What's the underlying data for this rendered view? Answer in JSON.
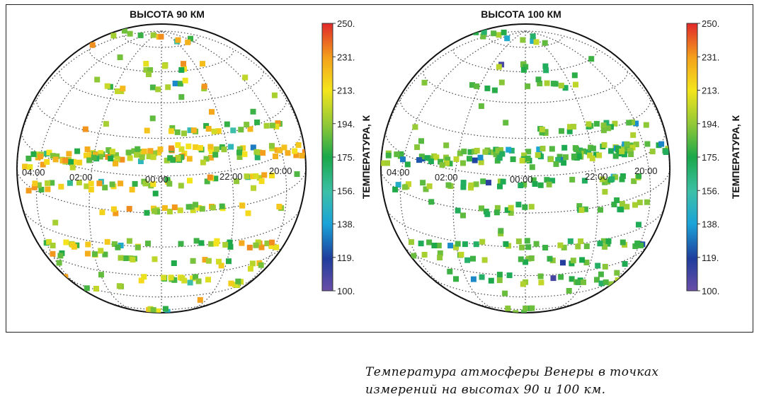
{
  "chart_data": [
    {
      "type": "scatter",
      "projection": "orthographic-globe",
      "title": "ВЫСОТА 90 КМ",
      "color_scale": {
        "label": "ТЕМПЕРАТУРА, К",
        "ticks": [
          "250.",
          "231.",
          "213.",
          "194.",
          "175.",
          "156.",
          "138.",
          "119.",
          "100."
        ],
        "range": [
          100,
          250
        ]
      },
      "longitude_labels": [
        "04:00",
        "02:00",
        "00:00",
        "22:00",
        "20:00"
      ],
      "grid": true
    },
    {
      "type": "scatter",
      "projection": "orthographic-globe",
      "title": "ВЫСОТА 100 КМ",
      "color_scale": {
        "label": "ТЕМПЕРАТУРА, К",
        "ticks": [
          "250.",
          "231.",
          "213.",
          "194.",
          "175.",
          "156.",
          "138.",
          "119.",
          "100."
        ],
        "range": [
          100,
          250
        ]
      },
      "longitude_labels": [
        "04:00",
        "02:00",
        "00:00",
        "22:00",
        "20:00"
      ],
      "grid": true
    }
  ],
  "caption": {
    "line1": "Температура атмосферы Венеры в точках",
    "line2": "измерений на высотах 90 и 100 км."
  }
}
